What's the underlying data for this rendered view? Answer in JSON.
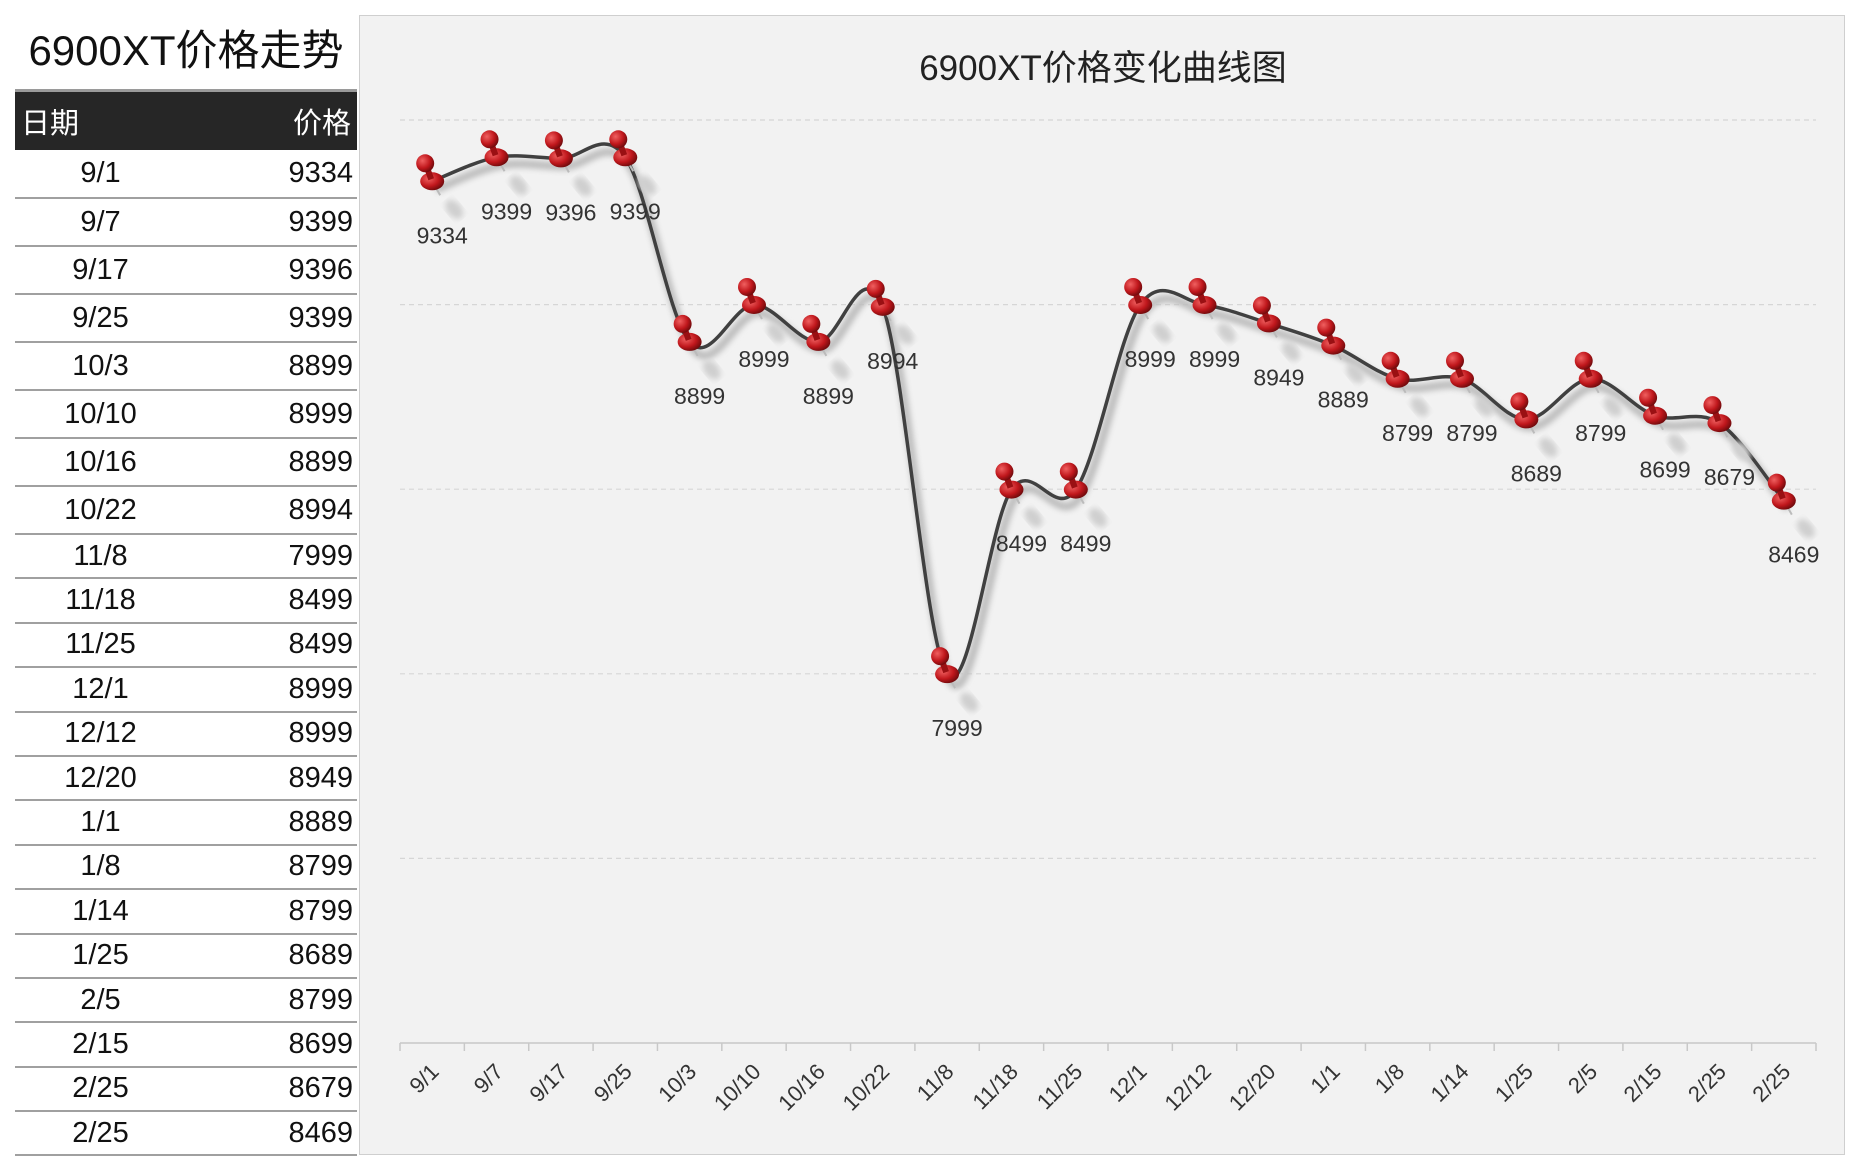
{
  "table": {
    "title": "6900XT价格走势",
    "headers": {
      "date": "日期",
      "price": "价格"
    }
  },
  "chart_data": {
    "type": "line",
    "title": "6900XT价格变化曲线图",
    "xlabel": "",
    "ylabel": "",
    "ylim": [
      7000,
      9500
    ],
    "grid": true,
    "gridlines": [
      7500,
      8000,
      8500,
      9000,
      9500
    ],
    "smooth": true,
    "marker": "pushpin",
    "colors": {
      "line": "#404040",
      "marker": "#c0171c",
      "grid": "#d6d6d6",
      "background": "#f2f2f2"
    },
    "categories": [
      "9/1",
      "9/7",
      "9/17",
      "9/25",
      "10/3",
      "10/10",
      "10/16",
      "10/22",
      "11/8",
      "11/18",
      "11/25",
      "12/1",
      "12/12",
      "12/20",
      "1/1",
      "1/8",
      "1/14",
      "1/25",
      "2/5",
      "2/15",
      "2/25",
      "2/25"
    ],
    "series": [
      {
        "name": "价格",
        "values": [
          9334,
          9399,
          9396,
          9399,
          8899,
          8999,
          8899,
          8994,
          7999,
          8499,
          8499,
          8999,
          8999,
          8949,
          8889,
          8799,
          8799,
          8689,
          8799,
          8699,
          8679,
          8469
        ]
      }
    ]
  }
}
